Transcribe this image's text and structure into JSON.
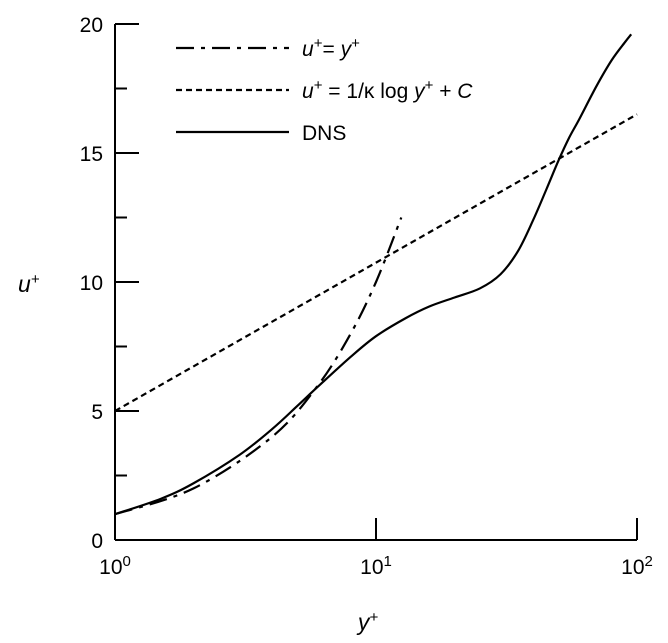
{
  "chart_data": {
    "type": "line",
    "x_scale": "log",
    "grid": false,
    "legend_placement": "top-left",
    "xlabel": {
      "base": "y",
      "sup": "+"
    },
    "ylabel": {
      "base": "u",
      "sup": "+"
    },
    "xlim": [
      1,
      100
    ],
    "ylim": [
      0,
      20
    ],
    "x_ticks": [
      {
        "value": 1,
        "base": "10",
        "exp": "0"
      },
      {
        "value": 10,
        "base": "10",
        "exp": "1"
      },
      {
        "value": 100,
        "base": "10",
        "exp": "2"
      }
    ],
    "y_ticks": [
      {
        "value": 0,
        "label": "0"
      },
      {
        "value": 5,
        "label": "5"
      },
      {
        "value": 10,
        "label": "10"
      },
      {
        "value": 15,
        "label": "15"
      },
      {
        "value": 20,
        "label": "20"
      }
    ],
    "series": [
      {
        "key": "viscous",
        "legend": [
          {
            "t": "u",
            "style": "italic"
          },
          {
            "t": "+",
            "style": "sup"
          },
          {
            "t": "= ",
            "style": "normal"
          },
          {
            "t": "y",
            "style": "italic"
          },
          {
            "t": "+",
            "style": "sup"
          }
        ],
        "dash": "dashdot",
        "x": [
          1,
          2,
          4,
          6,
          8,
          10,
          12.5
        ],
        "y": [
          1,
          2,
          4,
          6,
          8,
          10,
          12.5
        ]
      },
      {
        "key": "loglaw",
        "legend": [
          {
            "t": "u",
            "style": "italic"
          },
          {
            "t": "+",
            "style": "sup"
          },
          {
            "t": " = 1/κ log ",
            "style": "normal"
          },
          {
            "t": "y",
            "style": "italic"
          },
          {
            "t": "+",
            "style": "sup"
          },
          {
            "t": " + ",
            "style": "normal"
          },
          {
            "t": "C",
            "style": "italic"
          }
        ],
        "dash": "dashed",
        "x": [
          1,
          100
        ],
        "y": [
          5.0,
          16.5
        ]
      },
      {
        "key": "dns",
        "legend": [
          {
            "t": "DNS",
            "style": "normal"
          }
        ],
        "dash": "solid",
        "x": [
          1,
          1.5,
          2,
          3,
          4,
          5,
          6,
          8,
          10,
          13,
          16,
          20,
          25,
          30,
          35,
          40,
          45,
          50,
          55,
          60,
          70,
          80,
          90,
          95
        ],
        "y": [
          1.0,
          1.6,
          2.2,
          3.3,
          4.3,
          5.2,
          5.95,
          7.1,
          7.9,
          8.6,
          9.05,
          9.4,
          9.75,
          10.3,
          11.2,
          12.4,
          13.6,
          14.7,
          15.6,
          16.3,
          17.6,
          18.6,
          19.3,
          19.6
        ]
      }
    ]
  }
}
